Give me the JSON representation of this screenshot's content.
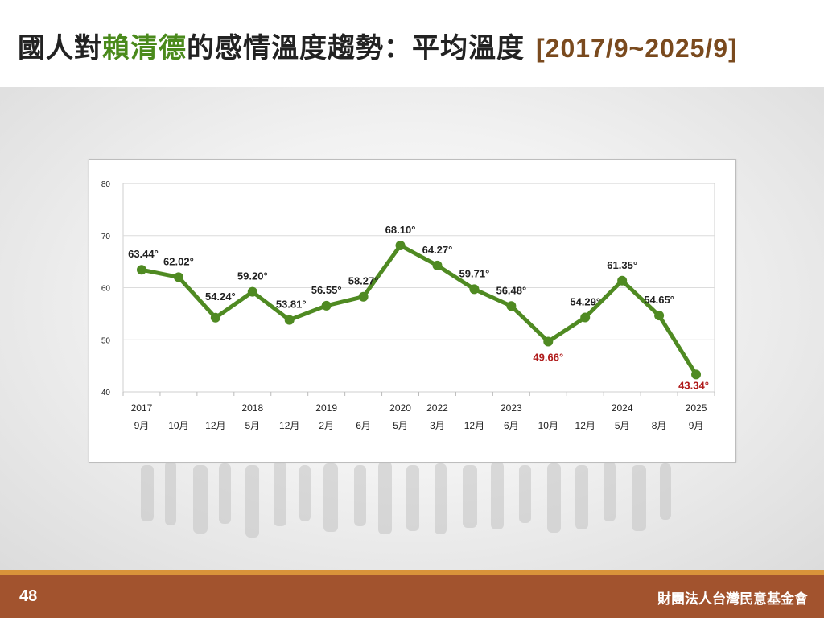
{
  "header": {
    "title_pre": "國人對",
    "title_highlight": "賴清德",
    "title_post": "的感情溫度趨勢：平均溫度",
    "title_range": "[2017/9~2025/9]"
  },
  "footer": {
    "page_number": "48",
    "organization": "財團法人台灣民意基金會"
  },
  "colors": {
    "line": "#4f8a22",
    "label_normal": "#222222",
    "label_low": "#b01c1c",
    "title_highlight": "#4a8a1c",
    "title_range": "#7a4a1e",
    "footer_bg": "#a2532e",
    "footer_stripe": "#d9933a"
  },
  "chart_data": {
    "type": "line",
    "ylim": [
      40,
      80
    ],
    "y_ticks": [
      "40",
      "50",
      "60",
      "70",
      "80"
    ],
    "grid": true,
    "categories": [
      {
        "year": "2017",
        "month": "9月"
      },
      {
        "year": "",
        "month": "10月"
      },
      {
        "year": "",
        "month": "12月"
      },
      {
        "year": "2018",
        "month": "5月"
      },
      {
        "year": "",
        "month": "12月"
      },
      {
        "year": "2019",
        "month": "2月"
      },
      {
        "year": "",
        "month": "6月"
      },
      {
        "year": "2020",
        "month": "5月"
      },
      {
        "year": "2022",
        "month": "3月"
      },
      {
        "year": "",
        "month": "12月"
      },
      {
        "year": "2023",
        "month": "6月"
      },
      {
        "year": "",
        "month": "10月"
      },
      {
        "year": "",
        "month": "12月"
      },
      {
        "year": "2024",
        "month": "5月"
      },
      {
        "year": "",
        "month": "8月"
      },
      {
        "year": "2025",
        "month": "9月"
      }
    ],
    "values": [
      63.44,
      62.02,
      54.24,
      59.2,
      53.81,
      56.55,
      58.27,
      68.1,
      64.27,
      59.71,
      56.48,
      49.66,
      54.29,
      61.35,
      54.65,
      43.34
    ],
    "data_labels": [
      "63.44°",
      "62.02°",
      "54.24°",
      "59.20°",
      "53.81°",
      "56.55°",
      "58.27°",
      "68.10°",
      "64.27°",
      "59.71°",
      "56.48°",
      "49.66°",
      "54.29°",
      "61.35°",
      "54.65°",
      "43.34°"
    ],
    "highlighted_low": [
      11,
      15
    ]
  }
}
